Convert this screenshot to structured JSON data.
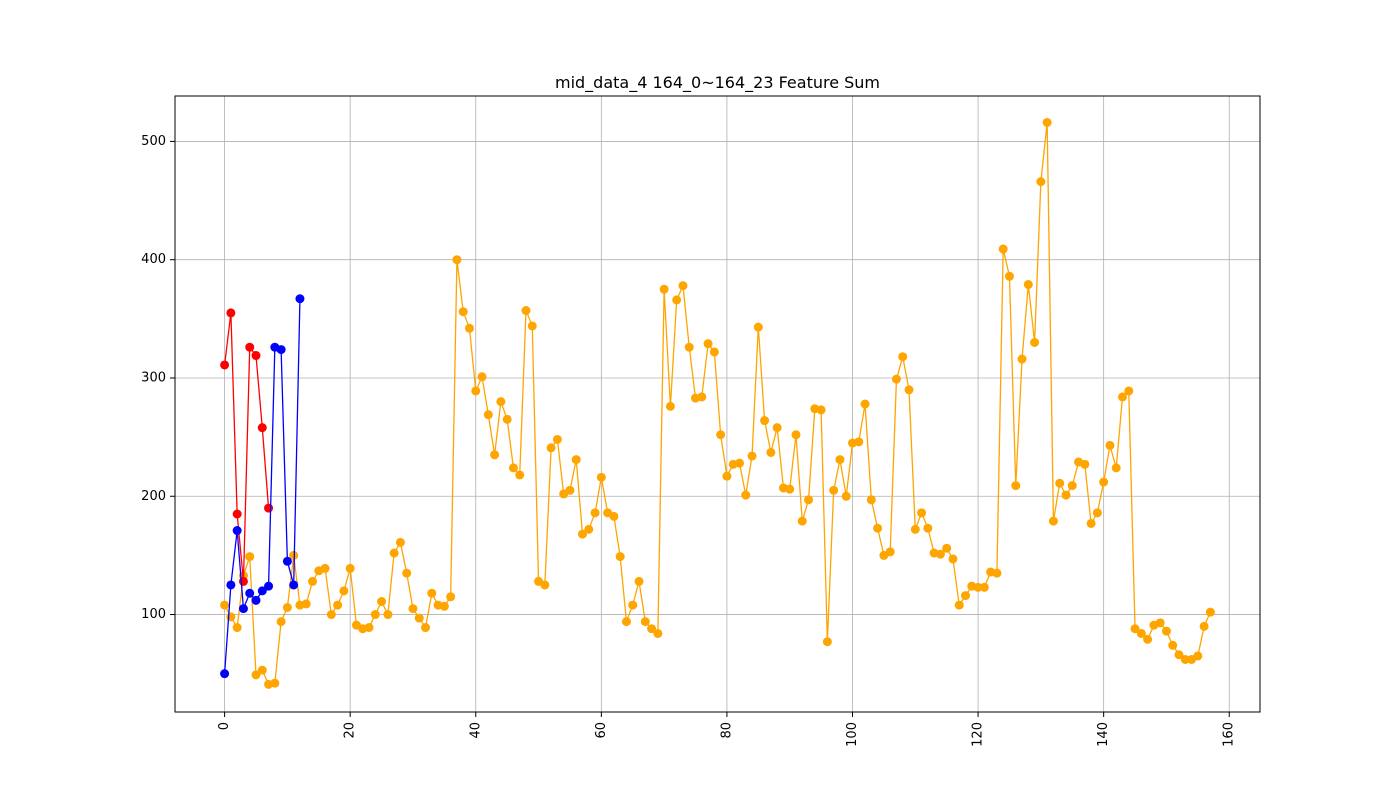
{
  "chart_data": {
    "type": "line",
    "title": "mid_data_4 164_0~164_23 Feature Sum",
    "xlabel": "",
    "ylabel": "",
    "xlim": [
      -7.9,
      164.9
    ],
    "ylim": [
      17.6,
      538.4
    ],
    "xticks": [
      0,
      20,
      40,
      60,
      80,
      100,
      120,
      140,
      160
    ],
    "yticks": [
      100,
      200,
      300,
      400,
      500
    ],
    "grid": true,
    "series": [
      {
        "color": "#ffa500",
        "values": [
          108,
          98,
          89,
          133,
          149,
          49,
          53,
          41,
          42,
          94,
          106,
          150,
          108,
          109,
          128,
          137,
          139,
          100,
          108,
          120,
          139,
          91,
          88,
          89,
          100,
          111,
          100,
          152,
          161,
          135,
          105,
          97,
          89,
          118,
          108,
          107,
          115,
          400,
          356,
          342,
          289,
          301,
          269,
          235,
          280,
          265,
          224,
          218,
          357,
          344,
          128,
          125,
          241,
          248,
          202,
          205,
          231,
          168,
          172,
          186,
          216,
          186,
          183,
          149,
          94,
          108,
          128,
          94,
          88,
          84,
          375,
          276,
          366,
          378,
          326,
          283,
          284,
          329,
          322,
          252,
          217,
          227,
          228,
          201,
          234,
          343,
          264,
          237,
          258,
          207,
          206,
          252,
          179,
          197,
          274,
          273,
          77,
          205,
          231,
          200,
          245,
          246,
          278,
          197,
          173,
          150,
          153,
          299,
          318,
          290,
          172,
          186,
          173,
          152,
          151,
          156,
          147,
          108,
          116,
          124,
          123,
          123,
          136,
          135,
          409,
          386,
          209,
          316,
          379,
          330,
          466,
          516,
          179,
          211,
          201,
          209,
          229,
          227,
          177,
          186,
          212,
          243,
          224,
          284,
          289,
          88,
          84,
          79,
          91,
          93,
          86,
          74,
          66,
          62,
          62,
          65,
          90,
          102
        ]
      },
      {
        "color": "#ff0000",
        "values": [
          311,
          355,
          185,
          128,
          326,
          319,
          258,
          190
        ]
      },
      {
        "color": "#0000ff",
        "values": [
          50,
          125,
          171,
          105,
          118,
          112,
          120,
          124,
          326,
          324,
          145,
          125,
          367
        ]
      }
    ]
  }
}
